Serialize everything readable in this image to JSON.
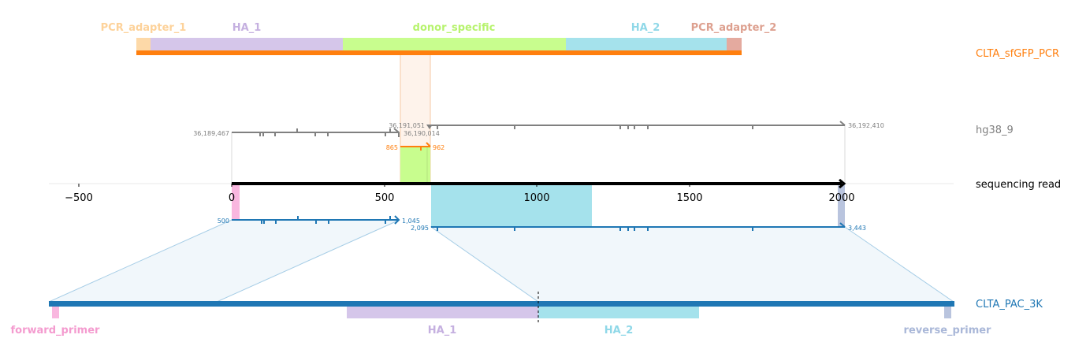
{
  "tracks": {
    "pcr": {
      "name": "CLTA_sfGFP_PCR",
      "color": "#ff7f0e"
    },
    "genome": {
      "name": "hg38_9",
      "color": "#808080"
    },
    "read": {
      "name": "sequencing read",
      "color": "#000000"
    },
    "donor": {
      "name": "CLTA_PAC_3K",
      "color": "#1f77b4"
    }
  },
  "pcr_features": [
    {
      "name": "PCR_adapter_1",
      "color": "#fdd9a8",
      "label_color": "#fdd29a"
    },
    {
      "name": "HA_1",
      "color": "#d5c6ea",
      "label_color": "#c5b0e0"
    },
    {
      "name": "donor_specific",
      "color": "#c8fd8e",
      "label_color": "#b7f36e"
    },
    {
      "name": "HA_2",
      "color": "#a5e2ec",
      "label_color": "#8fd8e8"
    },
    {
      "name": "PCR_adapter_2",
      "color": "#e4aa9f",
      "label_color": "#dda08f"
    }
  ],
  "donor_features": [
    {
      "name": "forward_primer",
      "color": "#f9b7df",
      "label_color": "#f49bcf"
    },
    {
      "name": "HA_1",
      "color": "#d5c6ea",
      "label_color": "#c5b0e0"
    },
    {
      "name": "HA_2",
      "color": "#a5e2ec",
      "label_color": "#8fd8e8"
    },
    {
      "name": "reverse_primer",
      "color": "#b9c4de",
      "label_color": "#a9b7d8"
    }
  ],
  "coordinates": {
    "genome_left_start": "36,189,467",
    "genome_left_end": "36,190,014",
    "genome_right_start": "36,191,051",
    "genome_right_end": "36,192,410",
    "pcr_start": "865",
    "pcr_end": "962",
    "donor_left_start": "500",
    "donor_left_end": "1,045",
    "donor_right_start": "2,095",
    "donor_right_end": "3,443"
  },
  "axis": {
    "ticks": [
      "−500",
      "0",
      "500",
      "1000",
      "1500",
      "2000"
    ]
  }
}
